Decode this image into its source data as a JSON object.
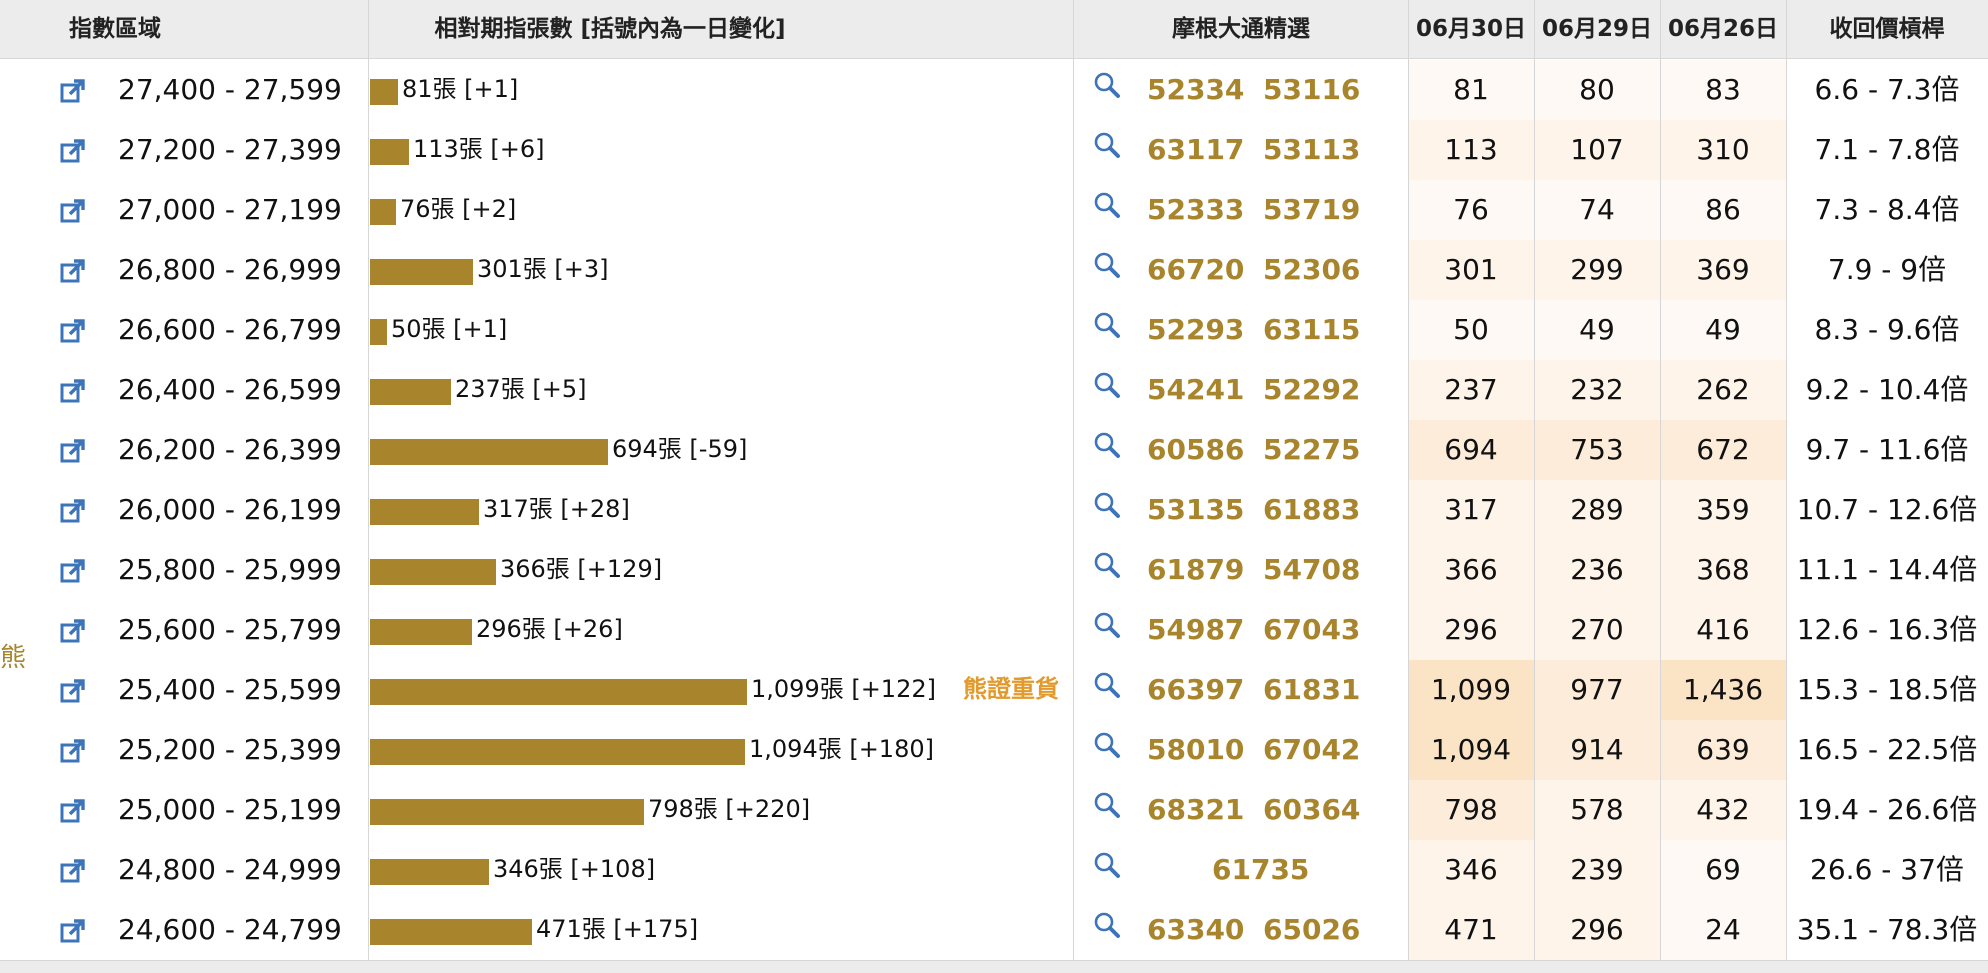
{
  "header": {
    "col_zone": "指數區域",
    "col_shares": "相對期指張數 [括號內為一日變化]",
    "col_picks": "摩根大通精選",
    "col_d1": "06月30日",
    "col_d2": "06月29日",
    "col_d3": "06月26日",
    "col_leverage": "收回價槓桿"
  },
  "side_label": "熊",
  "heavy_label": "熊證重貨",
  "colors": {
    "bar": "#a8852c",
    "code": "#a8852c",
    "heavy": "#e29a2c",
    "icon": "#3d74b9",
    "header_bg": "#ececec"
  },
  "max_contracts": 1099,
  "rows": [
    {
      "range": "27,400 - 27,599",
      "contracts": 81,
      "bar_text": "81張 [+1]",
      "codes": [
        "52334",
        "53116"
      ],
      "d1": "81",
      "d2": "80",
      "d3": "83",
      "leverage": "6.6 - 7.3倍",
      "heavy": false
    },
    {
      "range": "27,200 - 27,399",
      "contracts": 113,
      "bar_text": "113張 [+6]",
      "codes": [
        "63117",
        "53113"
      ],
      "d1": "113",
      "d2": "107",
      "d3": "310",
      "leverage": "7.1 - 7.8倍",
      "heavy": false
    },
    {
      "range": "27,000 - 27,199",
      "contracts": 76,
      "bar_text": "76張 [+2]",
      "codes": [
        "52333",
        "53719"
      ],
      "d1": "76",
      "d2": "74",
      "d3": "86",
      "leverage": "7.3 - 8.4倍",
      "heavy": false
    },
    {
      "range": "26,800 - 26,999",
      "contracts": 301,
      "bar_text": "301張 [+3]",
      "codes": [
        "66720",
        "52306"
      ],
      "d1": "301",
      "d2": "299",
      "d3": "369",
      "leverage": "7.9 - 9倍",
      "heavy": false
    },
    {
      "range": "26,600 - 26,799",
      "contracts": 50,
      "bar_text": "50張 [+1]",
      "codes": [
        "52293",
        "63115"
      ],
      "d1": "50",
      "d2": "49",
      "d3": "49",
      "leverage": "8.3 - 9.6倍",
      "heavy": false
    },
    {
      "range": "26,400 - 26,599",
      "contracts": 237,
      "bar_text": "237張 [+5]",
      "codes": [
        "54241",
        "52292"
      ],
      "d1": "237",
      "d2": "232",
      "d3": "262",
      "leverage": "9.2 - 10.4倍",
      "heavy": false
    },
    {
      "range": "26,200 - 26,399",
      "contracts": 694,
      "bar_text": "694張 [-59]",
      "codes": [
        "60586",
        "52275"
      ],
      "d1": "694",
      "d2": "753",
      "d3": "672",
      "leverage": "9.7 - 11.6倍",
      "heavy": false
    },
    {
      "range": "26,000 - 26,199",
      "contracts": 317,
      "bar_text": "317張 [+28]",
      "codes": [
        "53135",
        "61883"
      ],
      "d1": "317",
      "d2": "289",
      "d3": "359",
      "leverage": "10.7 - 12.6倍",
      "heavy": false
    },
    {
      "range": "25,800 - 25,999",
      "contracts": 366,
      "bar_text": "366張 [+129]",
      "codes": [
        "61879",
        "54708"
      ],
      "d1": "366",
      "d2": "236",
      "d3": "368",
      "leverage": "11.1 - 14.4倍",
      "heavy": false
    },
    {
      "range": "25,600 - 25,799",
      "contracts": 296,
      "bar_text": "296張 [+26]",
      "codes": [
        "54987",
        "67043"
      ],
      "d1": "296",
      "d2": "270",
      "d3": "416",
      "leverage": "12.6 - 16.3倍",
      "heavy": false
    },
    {
      "range": "25,400 - 25,599",
      "contracts": 1099,
      "bar_text": "1,099張 [+122]",
      "codes": [
        "66397",
        "61831"
      ],
      "d1": "1,099",
      "d2": "977",
      "d3": "1,436",
      "leverage": "15.3 - 18.5倍",
      "heavy": true
    },
    {
      "range": "25,200 - 25,399",
      "contracts": 1094,
      "bar_text": "1,094張 [+180]",
      "codes": [
        "58010",
        "67042"
      ],
      "d1": "1,094",
      "d2": "914",
      "d3": "639",
      "leverage": "16.5 - 22.5倍",
      "heavy": false
    },
    {
      "range": "25,000 - 25,199",
      "contracts": 798,
      "bar_text": "798張 [+220]",
      "codes": [
        "68321",
        "60364"
      ],
      "d1": "798",
      "d2": "578",
      "d3": "432",
      "leverage": "19.4 - 26.6倍",
      "heavy": false
    },
    {
      "range": "24,800 - 24,999",
      "contracts": 346,
      "bar_text": "346張 [+108]",
      "codes": [
        "61735"
      ],
      "d1": "346",
      "d2": "239",
      "d3": "69",
      "leverage": "26.6 - 37倍",
      "heavy": false
    },
    {
      "range": "24,600 - 24,799",
      "contracts": 471,
      "bar_text": "471張 [+175]",
      "codes": [
        "63340",
        "65026"
      ],
      "d1": "471",
      "d2": "296",
      "d3": "24",
      "leverage": "35.1 - 78.3倍",
      "heavy": false
    }
  ]
}
